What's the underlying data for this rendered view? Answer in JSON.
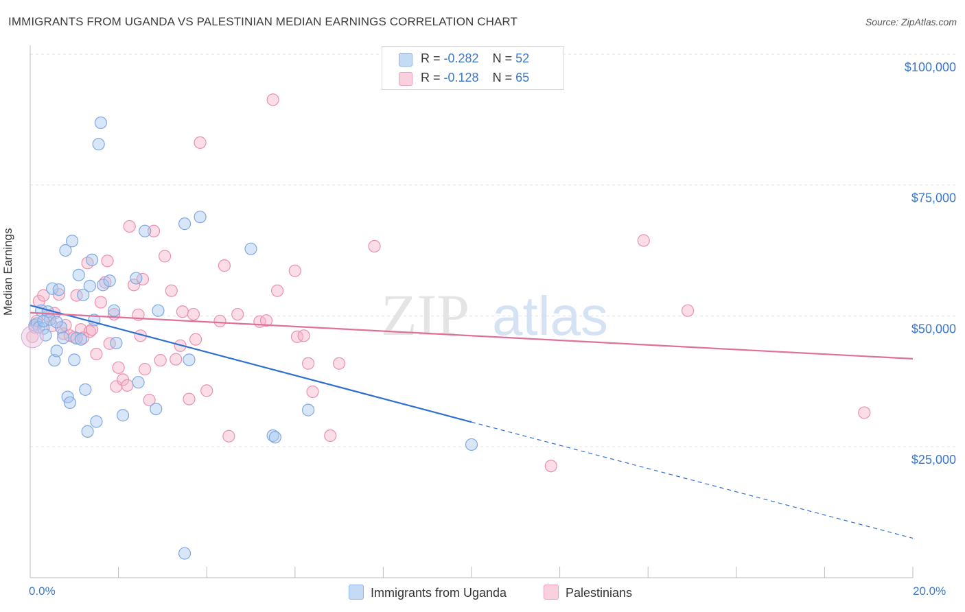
{
  "header": {
    "title": "IMMIGRANTS FROM UGANDA VS PALESTINIAN MEDIAN EARNINGS CORRELATION CHART",
    "source": "Source: ZipAtlas.com"
  },
  "watermark": {
    "part1": "ZIP",
    "part2": "atlas"
  },
  "legend": {
    "rows": [
      {
        "r_label": "R =",
        "r_value": "-0.282",
        "n_label": "N =",
        "n_value": "52",
        "color": "#a9c8f0"
      },
      {
        "r_label": "R =",
        "r_value": "-0.128",
        "n_label": "N =",
        "n_value": "65",
        "color": "#f5b3c8"
      }
    ]
  },
  "chart_data": {
    "type": "scatter",
    "ylabel": "Median Earnings",
    "xlim": [
      0,
      20
    ],
    "ylim": [
      0,
      105000
    ],
    "x_tick_labels": [
      "0.0%",
      "20.0%"
    ],
    "y_ticks": [
      {
        "value": 25000,
        "label": "$25,000"
      },
      {
        "value": 50000,
        "label": "$50,000"
      },
      {
        "value": 75000,
        "label": "$75,000"
      },
      {
        "value": 100000,
        "label": "$100,000"
      }
    ],
    "grid": true,
    "series": [
      {
        "name": "Immigrants from Uganda",
        "color": "#a9c8f0",
        "stroke": "#7ea9e0",
        "trend": {
          "x0": 0.0,
          "y0": 52000,
          "x1": 10.0,
          "y1": 29700,
          "dash_to_x": 20.0,
          "dash_to_y": 7500,
          "color": "#2f6fd0"
        },
        "points": [
          [
            0.1,
            48200
          ],
          [
            0.15,
            48500
          ],
          [
            0.2,
            47800
          ],
          [
            0.25,
            51000
          ],
          [
            0.3,
            47600
          ],
          [
            0.35,
            46300
          ],
          [
            0.4,
            50800
          ],
          [
            0.45,
            49300
          ],
          [
            0.5,
            55200
          ],
          [
            0.55,
            41500
          ],
          [
            0.6,
            43300
          ],
          [
            0.65,
            55000
          ],
          [
            0.7,
            47800
          ],
          [
            0.75,
            45800
          ],
          [
            0.8,
            62500
          ],
          [
            0.85,
            34500
          ],
          [
            0.9,
            33400
          ],
          [
            0.95,
            64300
          ],
          [
            1.0,
            41600
          ],
          [
            1.05,
            45700
          ],
          [
            1.1,
            57800
          ],
          [
            1.15,
            45500
          ],
          [
            1.2,
            54000
          ],
          [
            1.25,
            35900
          ],
          [
            1.3,
            27900
          ],
          [
            1.35,
            55700
          ],
          [
            1.4,
            60700
          ],
          [
            1.45,
            49200
          ],
          [
            1.5,
            29800
          ],
          [
            1.55,
            82800
          ],
          [
            1.6,
            86900
          ],
          [
            1.65,
            55900
          ],
          [
            1.8,
            56700
          ],
          [
            1.9,
            51000
          ],
          [
            1.95,
            44800
          ],
          [
            2.1,
            31000
          ],
          [
            2.4,
            57200
          ],
          [
            2.45,
            37300
          ],
          [
            2.6,
            66200
          ],
          [
            2.85,
            32200
          ],
          [
            2.9,
            51000
          ],
          [
            3.5,
            67600
          ],
          [
            3.6,
            41600
          ],
          [
            3.85,
            68900
          ],
          [
            3.5,
            4600
          ],
          [
            5.0,
            62800
          ],
          [
            5.5,
            27100
          ],
          [
            5.55,
            26800
          ],
          [
            6.3,
            32000
          ],
          [
            10.0,
            25400
          ],
          [
            0.3,
            49000
          ],
          [
            0.6,
            48800
          ]
        ]
      },
      {
        "name": "Palestinians",
        "color": "#f5b3c8",
        "stroke": "#ec8fae",
        "trend": {
          "x0": 0.0,
          "y0": 50600,
          "x1": 20.0,
          "y1": 41800,
          "color": "#e0709a"
        },
        "points": [
          [
            0.05,
            46000
          ],
          [
            0.1,
            47800
          ],
          [
            0.15,
            49000
          ],
          [
            0.2,
            52800
          ],
          [
            0.3,
            53900
          ],
          [
            0.4,
            50000
          ],
          [
            0.5,
            48100
          ],
          [
            0.55,
            50500
          ],
          [
            0.65,
            54100
          ],
          [
            0.75,
            46600
          ],
          [
            0.8,
            48200
          ],
          [
            0.9,
            46200
          ],
          [
            1.0,
            45900
          ],
          [
            1.05,
            53900
          ],
          [
            1.15,
            47400
          ],
          [
            1.2,
            45800
          ],
          [
            1.3,
            60100
          ],
          [
            1.35,
            47000
          ],
          [
            1.4,
            47400
          ],
          [
            1.5,
            42700
          ],
          [
            1.6,
            52600
          ],
          [
            1.7,
            56400
          ],
          [
            1.75,
            60500
          ],
          [
            1.8,
            44700
          ],
          [
            1.9,
            50300
          ],
          [
            1.95,
            36500
          ],
          [
            2.0,
            40100
          ],
          [
            2.1,
            37800
          ],
          [
            2.2,
            36700
          ],
          [
            2.25,
            67100
          ],
          [
            2.35,
            55900
          ],
          [
            2.45,
            50200
          ],
          [
            2.5,
            46200
          ],
          [
            2.55,
            57000
          ],
          [
            2.6,
            39800
          ],
          [
            2.7,
            33900
          ],
          [
            2.8,
            66200
          ],
          [
            2.95,
            41500
          ],
          [
            3.05,
            61400
          ],
          [
            3.2,
            54800
          ],
          [
            3.3,
            41700
          ],
          [
            3.4,
            44300
          ],
          [
            3.45,
            50800
          ],
          [
            3.6,
            34100
          ],
          [
            3.7,
            50300
          ],
          [
            3.75,
            45500
          ],
          [
            3.85,
            83100
          ],
          [
            4.0,
            35700
          ],
          [
            4.5,
            27000
          ],
          [
            4.4,
            59600
          ],
          [
            4.3,
            49000
          ],
          [
            4.7,
            50300
          ],
          [
            5.2,
            48900
          ],
          [
            5.35,
            49100
          ],
          [
            5.5,
            91300
          ],
          [
            5.6,
            54800
          ],
          [
            6.0,
            58600
          ],
          [
            6.05,
            46000
          ],
          [
            6.3,
            40900
          ],
          [
            6.4,
            35500
          ],
          [
            6.8,
            27100
          ],
          [
            7.0,
            40900
          ],
          [
            7.8,
            63300
          ],
          [
            11.8,
            21300
          ],
          [
            13.9,
            64400
          ]
        ],
        "extra_points": [
          [
            6.2,
            46200
          ],
          [
            14.9,
            51000
          ],
          [
            18.9,
            31500
          ]
        ]
      }
    ]
  },
  "bottom_legend": {
    "items": [
      {
        "label": "Immigrants from Uganda",
        "color": "#a9c8f0"
      },
      {
        "label": "Palestinians",
        "color": "#f5b3c8"
      }
    ]
  }
}
